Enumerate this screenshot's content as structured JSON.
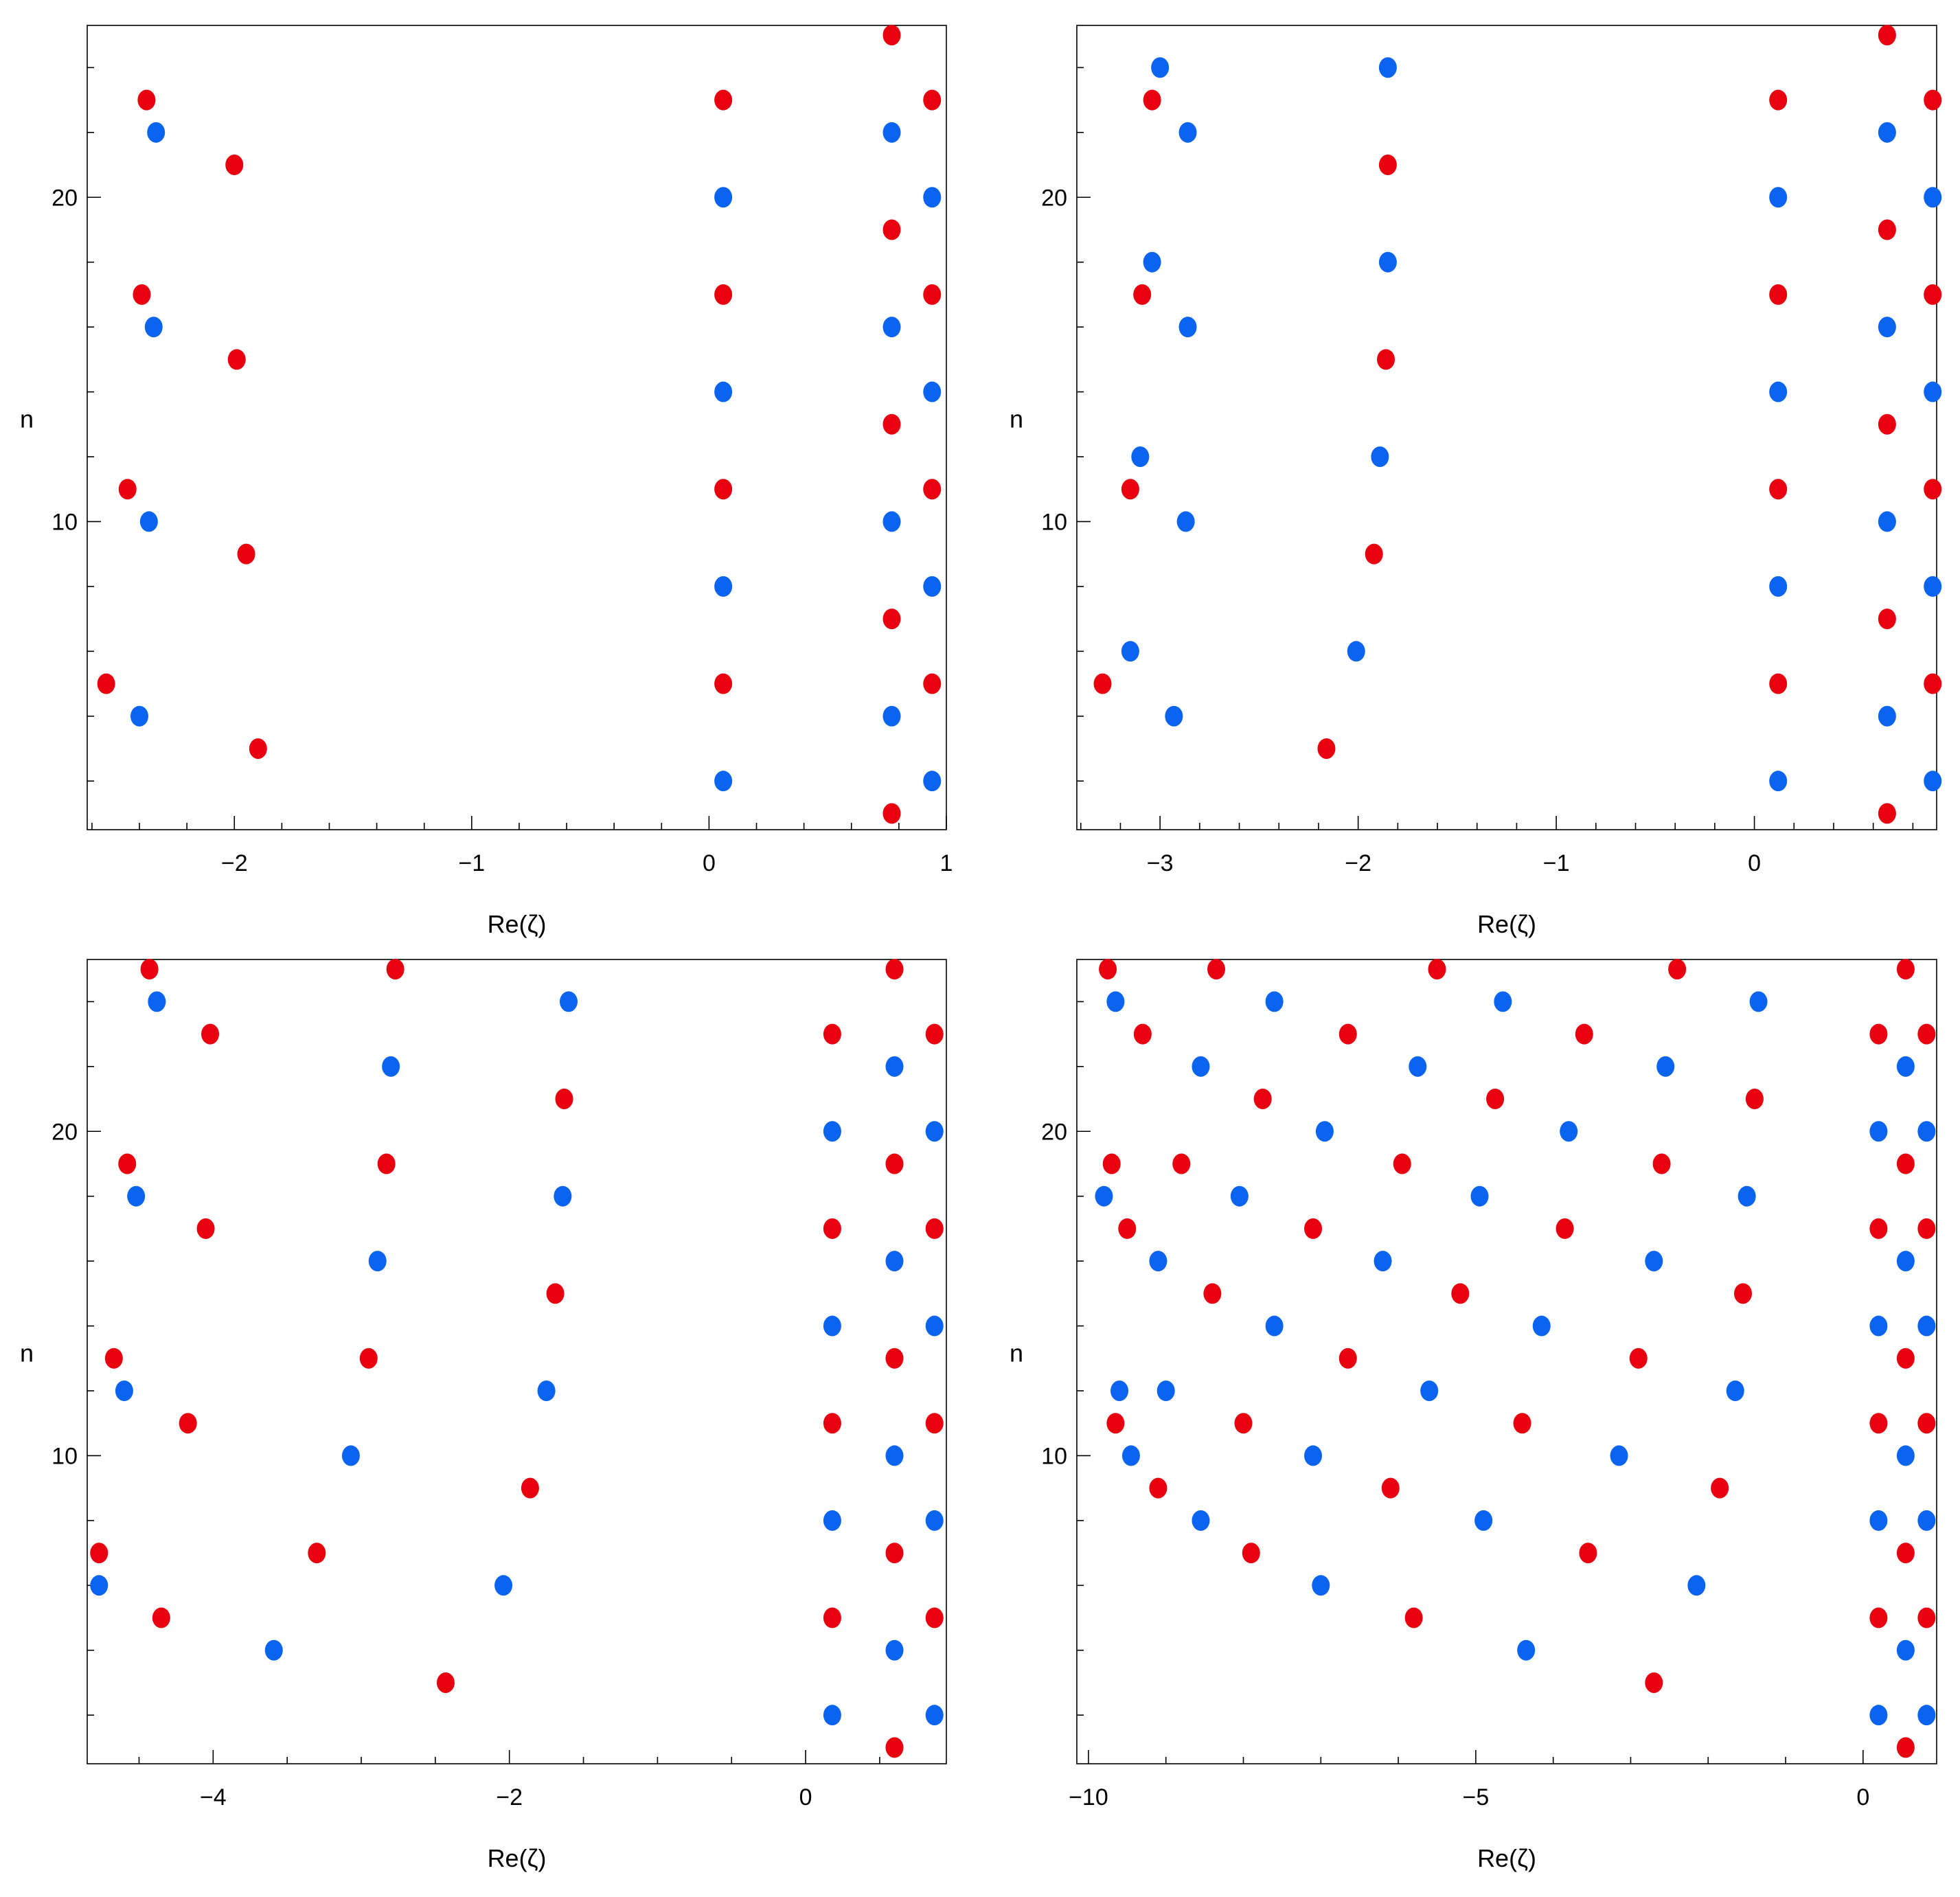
{
  "colors": {
    "red": "#e8000f",
    "blue": "#0a64f0"
  },
  "chart_data": [
    {
      "type": "scatter",
      "xlabel": "Re(ζ)",
      "ylabel": "n",
      "xlim": [
        -2.62,
        1.0
      ],
      "ylim": [
        0.5,
        25.3
      ],
      "xticks": [
        -2,
        -1,
        0,
        1
      ],
      "xtick_labels": [
        "−2",
        "−1",
        "0",
        "1"
      ],
      "yticks": [
        10,
        20
      ],
      "ytick_labels": [
        "10",
        "20"
      ],
      "series": [
        {
          "color": "red",
          "points": [
            [
              0.77,
              1
            ],
            [
              0.94,
              5
            ],
            [
              0.06,
              5
            ],
            [
              0.77,
              7
            ],
            [
              0.94,
              11
            ],
            [
              0.06,
              11
            ],
            [
              0.77,
              13
            ],
            [
              0.94,
              17
            ],
            [
              0.06,
              17
            ],
            [
              0.77,
              19
            ],
            [
              0.94,
              23
            ],
            [
              0.06,
              23
            ],
            [
              0.77,
              25
            ],
            [
              -2.54,
              5
            ],
            [
              -1.9,
              3
            ],
            [
              -2.45,
              11
            ],
            [
              -1.95,
              9
            ],
            [
              -2.39,
              17
            ],
            [
              -1.99,
              15
            ],
            [
              -2.37,
              23
            ],
            [
              -2.0,
              21
            ]
          ]
        },
        {
          "color": "blue",
          "points": [
            [
              0.06,
              2
            ],
            [
              0.94,
              2
            ],
            [
              0.77,
              4
            ],
            [
              0.06,
              8
            ],
            [
              0.94,
              8
            ],
            [
              0.77,
              10
            ],
            [
              0.06,
              14
            ],
            [
              0.94,
              14
            ],
            [
              0.77,
              16
            ],
            [
              0.06,
              20
            ],
            [
              0.94,
              20
            ],
            [
              0.77,
              22
            ],
            [
              -2.4,
              4
            ],
            [
              -2.36,
              10
            ],
            [
              -2.34,
              16
            ],
            [
              -2.33,
              22
            ]
          ]
        }
      ]
    },
    {
      "type": "scatter",
      "xlabel": "Re(ζ)",
      "ylabel": "n",
      "xlim": [
        -3.42,
        0.92
      ],
      "ylim": [
        0.5,
        25.3
      ],
      "xticks": [
        -3,
        -2,
        -1,
        0
      ],
      "xtick_labels": [
        "−3",
        "−2",
        "−1",
        "0"
      ],
      "yticks": [
        10,
        20
      ],
      "ytick_labels": [
        "10",
        "20"
      ],
      "series": [
        {
          "color": "red",
          "points": [
            [
              0.67,
              1
            ],
            [
              0.9,
              5
            ],
            [
              0.12,
              5
            ],
            [
              0.67,
              7
            ],
            [
              0.9,
              11
            ],
            [
              0.12,
              11
            ],
            [
              0.67,
              13
            ],
            [
              0.9,
              17
            ],
            [
              0.12,
              17
            ],
            [
              0.67,
              19
            ],
            [
              0.9,
              23
            ],
            [
              0.12,
              23
            ],
            [
              0.67,
              25
            ],
            [
              -3.29,
              5
            ],
            [
              -2.16,
              3
            ],
            [
              -3.15,
              11
            ],
            [
              -1.92,
              9
            ],
            [
              -3.09,
              17
            ],
            [
              -1.86,
              15
            ],
            [
              -3.04,
              23
            ],
            [
              -1.85,
              21
            ]
          ]
        },
        {
          "color": "blue",
          "points": [
            [
              0.12,
              2
            ],
            [
              0.9,
              2
            ],
            [
              0.67,
              4
            ],
            [
              0.12,
              8
            ],
            [
              0.9,
              8
            ],
            [
              0.67,
              10
            ],
            [
              0.12,
              14
            ],
            [
              0.9,
              14
            ],
            [
              0.67,
              16
            ],
            [
              0.12,
              20
            ],
            [
              0.9,
              20
            ],
            [
              0.67,
              22
            ],
            [
              -2.93,
              4
            ],
            [
              -3.15,
              6
            ],
            [
              -2.01,
              6
            ],
            [
              -2.87,
              10
            ],
            [
              -3.1,
              12
            ],
            [
              -1.89,
              12
            ],
            [
              -2.86,
              16
            ],
            [
              -3.04,
              18
            ],
            [
              -1.85,
              18
            ],
            [
              -2.86,
              22
            ],
            [
              -3.0,
              24
            ],
            [
              -1.85,
              24
            ]
          ]
        }
      ]
    },
    {
      "type": "scatter",
      "xlabel": "Re(ζ)",
      "ylabel": "n",
      "xlim": [
        -4.85,
        0.95
      ],
      "ylim": [
        0.5,
        25.3
      ],
      "xticks": [
        -4,
        -2,
        0
      ],
      "xtick_labels": [
        "−4",
        "−2",
        "0"
      ],
      "yticks": [
        10,
        20
      ],
      "ytick_labels": [
        "10",
        "20"
      ],
      "series": [
        {
          "color": "red",
          "points": [
            [
              0.6,
              1
            ],
            [
              0.87,
              5
            ],
            [
              0.18,
              5
            ],
            [
              0.6,
              7
            ],
            [
              0.87,
              11
            ],
            [
              0.18,
              11
            ],
            [
              0.6,
              13
            ],
            [
              0.87,
              17
            ],
            [
              0.18,
              17
            ],
            [
              0.6,
              19
            ],
            [
              0.87,
              23
            ],
            [
              0.18,
              23
            ],
            [
              0.6,
              25
            ],
            [
              -4.35,
              5
            ],
            [
              -2.43,
              3
            ],
            [
              -4.77,
              7
            ],
            [
              -3.3,
              7
            ],
            [
              -4.17,
              11
            ],
            [
              -1.86,
              9
            ],
            [
              -4.67,
              13
            ],
            [
              -2.95,
              13
            ],
            [
              -4.05,
              17
            ],
            [
              -1.69,
              15
            ],
            [
              -4.58,
              19
            ],
            [
              -2.83,
              19
            ],
            [
              -4.02,
              23
            ],
            [
              -1.63,
              21
            ],
            [
              -4.43,
              25
            ],
            [
              -2.77,
              25
            ]
          ]
        },
        {
          "color": "blue",
          "points": [
            [
              0.18,
              2
            ],
            [
              0.87,
              2
            ],
            [
              0.6,
              4
            ],
            [
              0.18,
              8
            ],
            [
              0.87,
              8
            ],
            [
              0.6,
              10
            ],
            [
              0.18,
              14
            ],
            [
              0.87,
              14
            ],
            [
              0.6,
              16
            ],
            [
              0.18,
              20
            ],
            [
              0.87,
              20
            ],
            [
              0.6,
              22
            ],
            [
              -3.59,
              4
            ],
            [
              -4.77,
              6
            ],
            [
              -2.04,
              6
            ],
            [
              -3.07,
              10
            ],
            [
              -4.6,
              12
            ],
            [
              -1.75,
              12
            ],
            [
              -2.89,
              16
            ],
            [
              -4.52,
              18
            ],
            [
              -1.64,
              18
            ],
            [
              -2.8,
              22
            ],
            [
              -4.38,
              24
            ],
            [
              -1.6,
              24
            ]
          ]
        }
      ]
    },
    {
      "type": "scatter",
      "xlabel": "Re(ζ)",
      "ylabel": "n",
      "xlim": [
        -10.15,
        0.95
      ],
      "ylim": [
        0.5,
        25.3
      ],
      "xticks": [
        -10,
        -5,
        0
      ],
      "xtick_labels": [
        "−10",
        "−5",
        "0"
      ],
      "yticks": [
        10,
        20
      ],
      "ytick_labels": [
        "10",
        "20"
      ],
      "series": [
        {
          "color": "red",
          "points": [
            [
              0.55,
              1
            ],
            [
              0.82,
              5
            ],
            [
              0.2,
              5
            ],
            [
              0.55,
              7
            ],
            [
              0.82,
              11
            ],
            [
              0.2,
              11
            ],
            [
              0.55,
              13
            ],
            [
              0.82,
              17
            ],
            [
              0.2,
              17
            ],
            [
              0.55,
              19
            ],
            [
              0.82,
              23
            ],
            [
              0.2,
              23
            ],
            [
              0.55,
              25
            ],
            [
              -2.7,
              3
            ],
            [
              -5.8,
              5
            ],
            [
              -7.9,
              7
            ],
            [
              -3.55,
              7
            ],
            [
              -9.1,
              9
            ],
            [
              -6.1,
              9
            ],
            [
              -1.85,
              9
            ],
            [
              -9.65,
              11
            ],
            [
              -8.0,
              11
            ],
            [
              -4.4,
              11
            ],
            [
              -6.65,
              13
            ],
            [
              -2.9,
              13
            ],
            [
              -8.4,
              15
            ],
            [
              -5.2,
              15
            ],
            [
              -1.55,
              15
            ],
            [
              -9.5,
              17
            ],
            [
              -7.1,
              17
            ],
            [
              -3.85,
              17
            ],
            [
              -9.7,
              19
            ],
            [
              -8.8,
              19
            ],
            [
              -5.95,
              19
            ],
            [
              -2.6,
              19
            ],
            [
              -7.75,
              21
            ],
            [
              -4.75,
              21
            ],
            [
              -1.4,
              21
            ],
            [
              -9.3,
              23
            ],
            [
              -6.65,
              23
            ],
            [
              -3.6,
              23
            ],
            [
              -9.75,
              25
            ],
            [
              -8.35,
              25
            ],
            [
              -5.5,
              25
            ],
            [
              -2.4,
              25
            ]
          ]
        },
        {
          "color": "blue",
          "points": [
            [
              0.2,
              2
            ],
            [
              0.82,
              2
            ],
            [
              0.55,
              4
            ],
            [
              0.2,
              8
            ],
            [
              0.82,
              8
            ],
            [
              0.55,
              10
            ],
            [
              0.2,
              14
            ],
            [
              0.82,
              14
            ],
            [
              0.55,
              16
            ],
            [
              0.2,
              20
            ],
            [
              0.82,
              20
            ],
            [
              0.55,
              22
            ],
            [
              -4.35,
              4
            ],
            [
              -7.0,
              6
            ],
            [
              -2.15,
              6
            ],
            [
              -8.55,
              8
            ],
            [
              -4.9,
              8
            ],
            [
              -9.45,
              10
            ],
            [
              -7.1,
              10
            ],
            [
              -3.15,
              10
            ],
            [
              -9.6,
              12
            ],
            [
              -9.0,
              12
            ],
            [
              -5.6,
              12
            ],
            [
              -1.65,
              12
            ],
            [
              -7.6,
              14
            ],
            [
              -4.15,
              14
            ],
            [
              -9.1,
              16
            ],
            [
              -6.2,
              16
            ],
            [
              -2.7,
              16
            ],
            [
              -9.8,
              18
            ],
            [
              -8.05,
              18
            ],
            [
              -4.95,
              18
            ],
            [
              -1.5,
              18
            ],
            [
              -6.95,
              20
            ],
            [
              -3.8,
              20
            ],
            [
              -8.55,
              22
            ],
            [
              -5.75,
              22
            ],
            [
              -2.55,
              22
            ],
            [
              -9.65,
              24
            ],
            [
              -7.6,
              24
            ],
            [
              -4.65,
              24
            ],
            [
              -1.35,
              24
            ]
          ]
        }
      ]
    }
  ]
}
